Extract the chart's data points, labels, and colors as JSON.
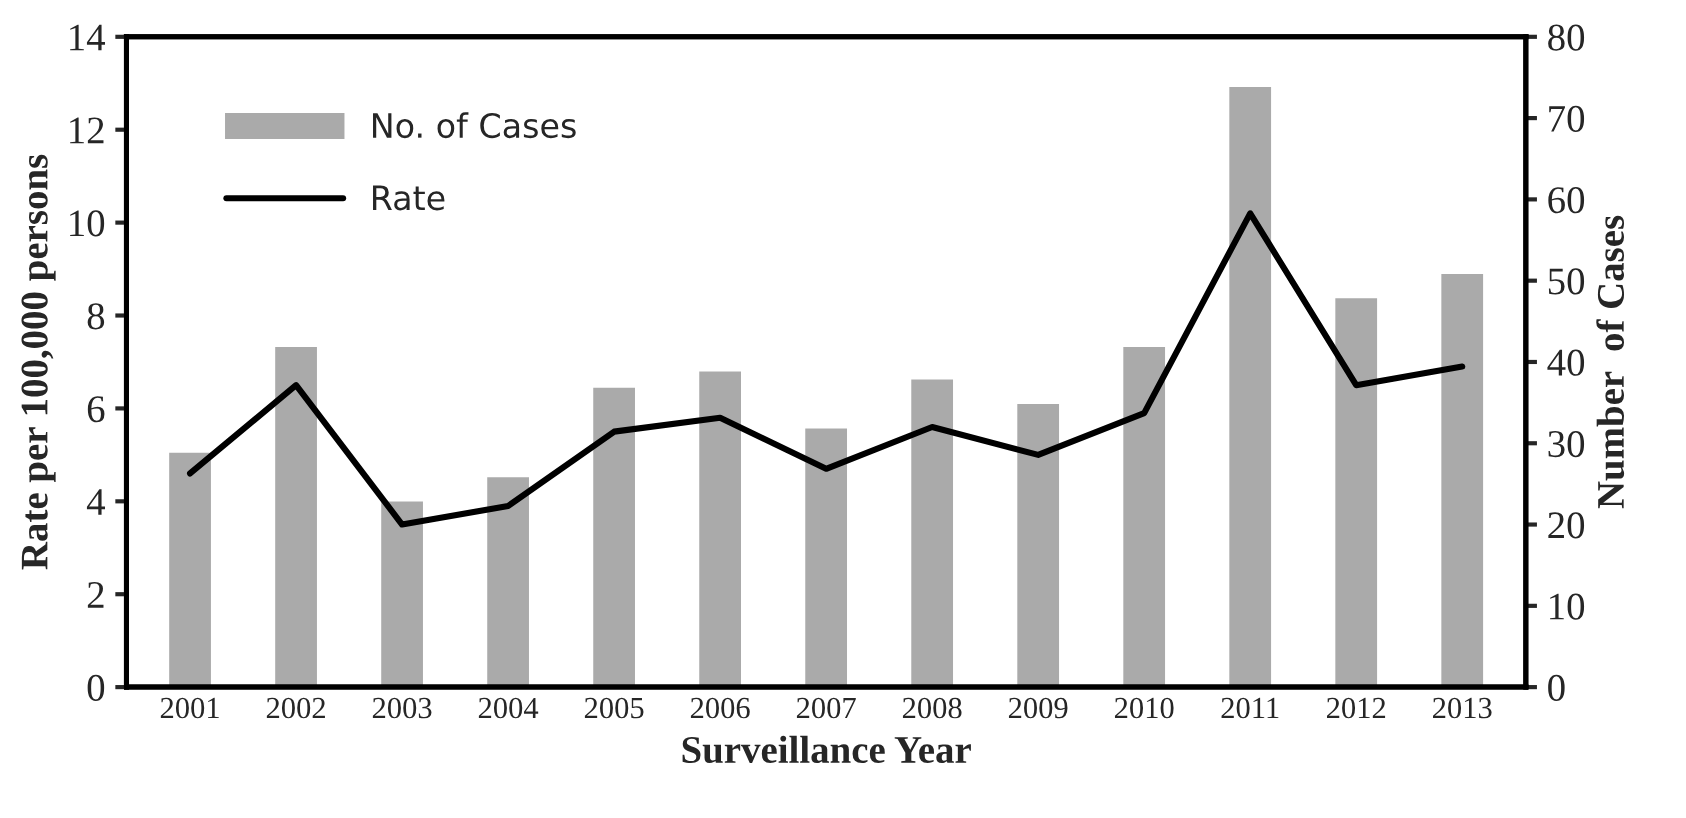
{
  "chart_data": {
    "type": "bar",
    "xlabel": "Surveillance Year",
    "ylabel": "Rate per 100,000 persons",
    "y2label": "Number  of Cases",
    "categories": [
      "2001",
      "2002",
      "2003",
      "2004",
      "2005",
      "2006",
      "2007",
      "2008",
      "2009",
      "2010",
      "2011",
      "2012",
      "2013"
    ],
    "series": [
      {
        "name": "No. of Cases",
        "axis": "y2",
        "color": "#aaaaaa",
        "values": [
          29,
          42,
          23,
          26,
          37,
          39,
          32,
          38,
          35,
          42,
          74,
          48,
          51
        ]
      },
      {
        "name": "Rate",
        "type": "line",
        "color": "#000000",
        "values": [
          4.6,
          6.5,
          3.5,
          3.9,
          5.5,
          5.8,
          4.7,
          5.6,
          5.0,
          5.9,
          10.2,
          6.5,
          6.9
        ]
      }
    ],
    "ylim": [
      0,
      14
    ],
    "yticks": [
      0,
      2,
      4,
      6,
      8,
      10,
      12,
      14
    ],
    "y2lim": [
      0,
      80
    ],
    "y2ticks": [
      0,
      10,
      20,
      30,
      40,
      50,
      60,
      70,
      80
    ],
    "grid": false,
    "legend": "top left",
    "marker": "none",
    "line_style": "solid"
  }
}
